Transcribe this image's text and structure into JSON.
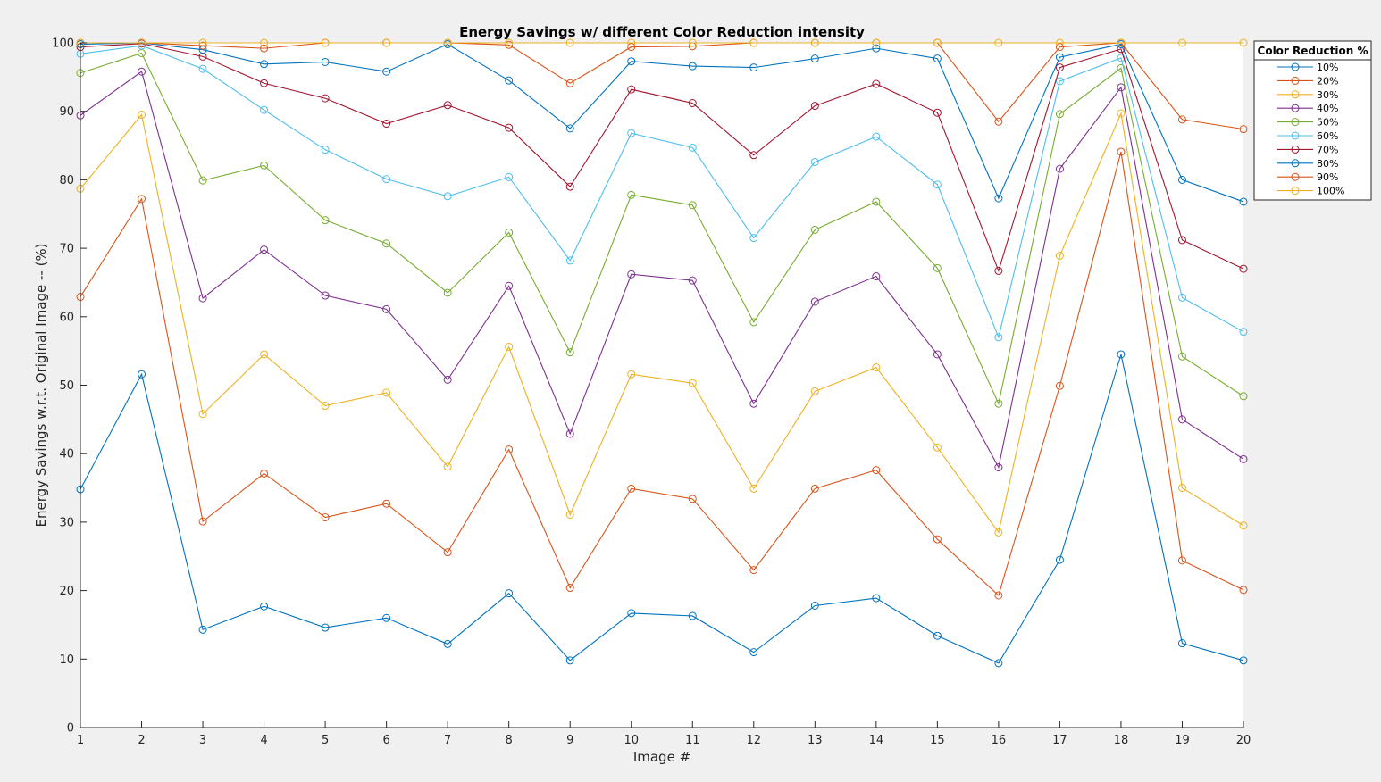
{
  "chart_data": {
    "type": "line",
    "title": "Energy Savings w/ different Color Reduction intensity",
    "xlabel": "Image #",
    "ylabel": "Energy Savings w.r.t. Original Image -- (%)",
    "xlim": [
      1,
      20
    ],
    "ylim": [
      0,
      100
    ],
    "x": [
      1,
      2,
      3,
      4,
      5,
      6,
      7,
      8,
      9,
      10,
      11,
      12,
      13,
      14,
      15,
      16,
      17,
      18,
      19,
      20
    ],
    "xticks": [
      "1",
      "2",
      "3",
      "4",
      "5",
      "6",
      "7",
      "8",
      "9",
      "10",
      "11",
      "12",
      "13",
      "14",
      "15",
      "16",
      "17",
      "18",
      "19",
      "20"
    ],
    "yticks": [
      "0",
      "10",
      "20",
      "30",
      "40",
      "50",
      "60",
      "70",
      "80",
      "90",
      "100"
    ],
    "grid": false,
    "marker": "circle",
    "legend_title": "Color Reduction %",
    "legend_position": "top-right outside",
    "series": [
      {
        "name": "10%",
        "color": "#0072BD",
        "values": [
          34.8,
          51.6,
          14.3,
          17.7,
          14.6,
          16.0,
          12.2,
          19.6,
          9.8,
          16.7,
          16.3,
          11.0,
          17.8,
          18.9,
          13.4,
          9.4,
          24.5,
          54.5,
          12.3,
          9.8
        ]
      },
      {
        "name": "20%",
        "color": "#D95319",
        "values": [
          62.9,
          77.2,
          30.1,
          37.1,
          30.7,
          32.7,
          25.6,
          40.6,
          20.4,
          34.9,
          33.4,
          23.0,
          34.9,
          37.6,
          27.5,
          19.3,
          49.9,
          84.1,
          24.4,
          20.1
        ]
      },
      {
        "name": "30%",
        "color": "#EDB120",
        "values": [
          78.7,
          89.5,
          45.8,
          54.5,
          47.0,
          48.9,
          38.1,
          55.6,
          31.1,
          51.6,
          50.3,
          34.9,
          49.1,
          52.6,
          40.9,
          28.5,
          68.9,
          89.7,
          35.0,
          29.5
        ]
      },
      {
        "name": "40%",
        "color": "#7E2F8E",
        "values": [
          89.4,
          95.8,
          62.7,
          69.8,
          63.1,
          61.1,
          50.8,
          64.5,
          42.9,
          66.2,
          65.3,
          47.3,
          62.2,
          65.9,
          54.5,
          38.0,
          81.6,
          93.5,
          45.0,
          39.2
        ]
      },
      {
        "name": "50%",
        "color": "#77AC30",
        "values": [
          95.6,
          98.5,
          79.9,
          82.1,
          74.1,
          70.7,
          63.5,
          72.3,
          54.8,
          77.8,
          76.3,
          59.2,
          72.7,
          76.8,
          67.1,
          47.3,
          89.6,
          96.3,
          54.2,
          48.4
        ]
      },
      {
        "name": "60%",
        "color": "#4DBEEE",
        "values": [
          98.4,
          99.6,
          96.2,
          90.2,
          84.4,
          80.1,
          77.6,
          80.4,
          68.2,
          86.8,
          84.7,
          71.5,
          82.6,
          86.3,
          79.3,
          57.0,
          94.4,
          97.8,
          62.8,
          57.8
        ]
      },
      {
        "name": "70%",
        "color": "#A2142F",
        "values": [
          99.4,
          99.9,
          98.0,
          94.1,
          91.9,
          88.2,
          90.9,
          87.6,
          79.0,
          93.2,
          91.2,
          83.6,
          90.8,
          94.0,
          89.8,
          66.7,
          96.4,
          99.1,
          71.2,
          67.0
        ]
      },
      {
        "name": "80%",
        "color": "#0072BD",
        "values": [
          99.8,
          100.0,
          99.0,
          96.9,
          97.2,
          95.8,
          99.8,
          94.5,
          87.5,
          97.3,
          96.6,
          96.4,
          97.7,
          99.2,
          97.7,
          77.3,
          97.9,
          99.8,
          80.0,
          76.8
        ]
      },
      {
        "name": "90%",
        "color": "#D95319",
        "values": [
          100.0,
          100.0,
          99.6,
          99.2,
          100.0,
          100.0,
          100.0,
          99.7,
          94.1,
          99.4,
          99.5,
          100.0,
          100.0,
          100.0,
          100.0,
          88.5,
          99.4,
          100.0,
          88.8,
          87.4
        ]
      },
      {
        "name": "100%",
        "color": "#EDB120",
        "values": [
          100.0,
          100.0,
          100.0,
          100.0,
          100.0,
          100.0,
          100.0,
          100.0,
          100.0,
          100.0,
          100.0,
          100.0,
          100.0,
          100.0,
          100.0,
          100.0,
          100.0,
          100.0,
          100.0,
          100.0
        ]
      }
    ]
  }
}
